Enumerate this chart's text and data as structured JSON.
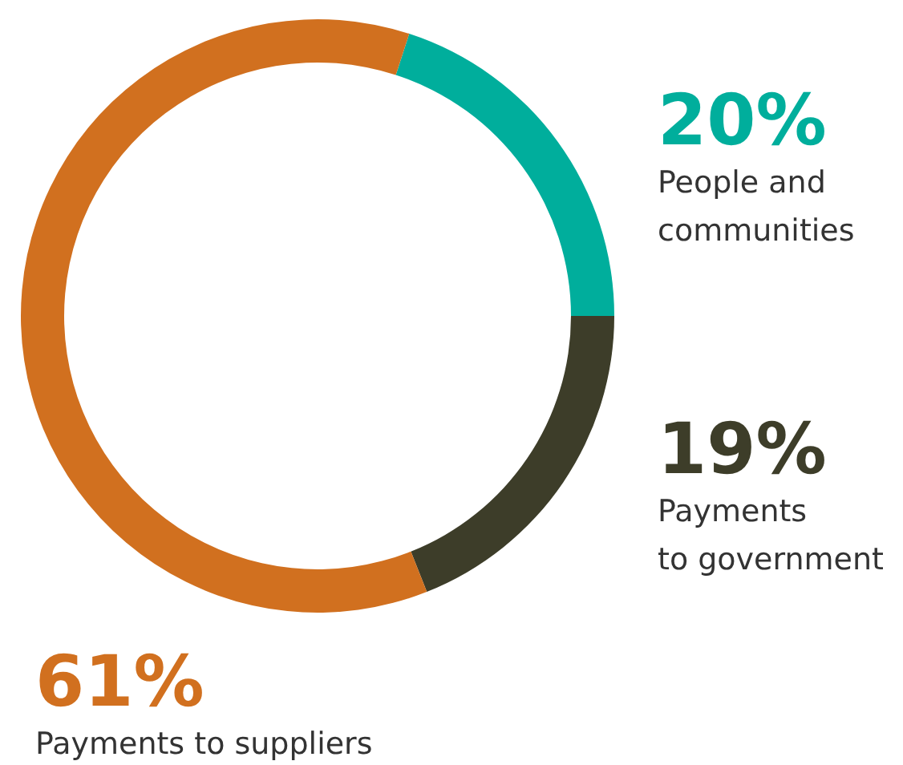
{
  "chart_data": {
    "type": "donut",
    "categories": [
      "People and\ncommunities",
      "Payments\nto government",
      "Payments to suppliers"
    ],
    "values": [
      20,
      19,
      61
    ],
    "colors": [
      "#00ae9c",
      "#3d3d29",
      "#d1701f"
    ],
    "value_labels": [
      "20%",
      "19%",
      "61%"
    ]
  }
}
